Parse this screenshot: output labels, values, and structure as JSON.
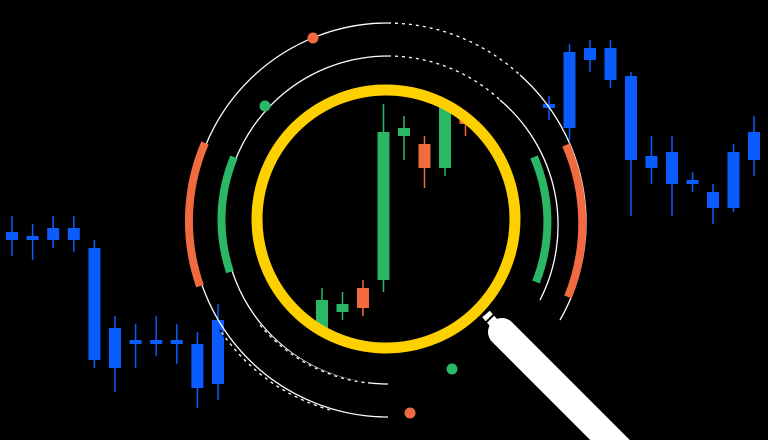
{
  "colors": {
    "background": "#000000",
    "bullish_blue": "#0a5cff",
    "bullish_green": "#2bb866",
    "bearish_orange": "#f26a3f",
    "lens_ring": "#ffd000",
    "orbit_line": "#ffffff",
    "handle": "#ffffff",
    "outer_arc": "#f26a3f",
    "inner_arc": "#2bb866"
  },
  "icons": {
    "illustration": "magnifying-glass-over-candlestick-chart",
    "lens": "magnifier-icon",
    "orbit_dots": [
      "orange-dot",
      "green-dot",
      "green-dot",
      "orange-dot"
    ]
  },
  "candles_left": [
    {
      "o": 0.52,
      "c": 0.5,
      "h": 0.56,
      "l": 0.46
    },
    {
      "o": 0.51,
      "c": 0.5,
      "h": 0.54,
      "l": 0.45
    },
    {
      "o": 0.5,
      "c": 0.53,
      "h": 0.56,
      "l": 0.48
    },
    {
      "o": 0.5,
      "c": 0.53,
      "h": 0.56,
      "l": 0.47
    },
    {
      "o": 0.48,
      "c": 0.2,
      "h": 0.5,
      "l": 0.18
    },
    {
      "o": 0.28,
      "c": 0.18,
      "h": 0.31,
      "l": 0.12
    },
    {
      "o": 0.25,
      "c": 0.24,
      "h": 0.29,
      "l": 0.18
    },
    {
      "o": 0.25,
      "c": 0.24,
      "h": 0.31,
      "l": 0.21
    },
    {
      "o": 0.25,
      "c": 0.24,
      "h": 0.29,
      "l": 0.19
    },
    {
      "o": 0.24,
      "c": 0.13,
      "h": 0.27,
      "l": 0.08
    },
    {
      "o": 0.14,
      "c": 0.3,
      "h": 0.34,
      "l": 0.1
    }
  ],
  "candles_mid": [
    {
      "o": 0.28,
      "c": 0.35,
      "h": 0.38,
      "l": 0.24,
      "dir": "up"
    },
    {
      "o": 0.32,
      "c": 0.34,
      "h": 0.37,
      "l": 0.3,
      "dir": "up"
    },
    {
      "o": 0.38,
      "c": 0.33,
      "h": 0.4,
      "l": 0.31,
      "dir": "down"
    },
    {
      "o": 0.4,
      "c": 0.77,
      "h": 0.84,
      "l": 0.37,
      "dir": "up"
    },
    {
      "o": 0.76,
      "c": 0.78,
      "h": 0.81,
      "l": 0.7,
      "dir": "up"
    },
    {
      "o": 0.74,
      "c": 0.68,
      "h": 0.76,
      "l": 0.63,
      "dir": "down"
    },
    {
      "o": 0.68,
      "c": 0.85,
      "h": 0.9,
      "l": 0.66,
      "dir": "up"
    },
    {
      "o": 0.83,
      "c": 0.79,
      "h": 0.86,
      "l": 0.76,
      "dir": "down"
    },
    {
      "o": 0.8,
      "c": 0.86,
      "h": 0.88,
      "l": 0.76,
      "dir": "up"
    }
  ],
  "candles_right": [
    {
      "o": 0.84,
      "c": 0.83,
      "h": 0.86,
      "l": 0.8
    },
    {
      "o": 0.78,
      "c": 0.97,
      "h": 0.99,
      "l": 0.75
    },
    {
      "o": 0.95,
      "c": 0.98,
      "h": 1.0,
      "l": 0.92
    },
    {
      "o": 0.9,
      "c": 0.98,
      "h": 1.0,
      "l": 0.88
    },
    {
      "o": 0.7,
      "c": 0.91,
      "h": 0.92,
      "l": 0.56
    },
    {
      "o": 0.68,
      "c": 0.71,
      "h": 0.76,
      "l": 0.64
    },
    {
      "o": 0.64,
      "c": 0.72,
      "h": 0.76,
      "l": 0.56
    },
    {
      "o": 0.64,
      "c": 0.65,
      "h": 0.67,
      "l": 0.62
    },
    {
      "o": 0.58,
      "c": 0.62,
      "h": 0.64,
      "l": 0.54
    },
    {
      "o": 0.58,
      "c": 0.72,
      "h": 0.74,
      "l": 0.57
    },
    {
      "o": 0.7,
      "c": 0.77,
      "h": 0.81,
      "l": 0.66
    }
  ]
}
